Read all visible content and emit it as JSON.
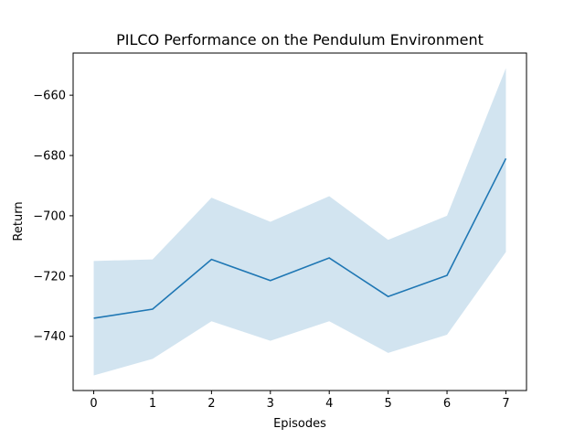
{
  "chart_data": {
    "type": "line",
    "title": "PILCO Performance on the Pendulum Environment",
    "xlabel": "Episodes",
    "ylabel": "Return",
    "x": [
      0,
      1,
      2,
      3,
      4,
      5,
      6,
      7
    ],
    "xticks": [
      "0",
      "1",
      "2",
      "3",
      "4",
      "5",
      "6",
      "7"
    ],
    "yticks": [
      -740,
      -720,
      -700,
      -680,
      -660
    ],
    "ytick_labels": [
      "−740",
      "−720",
      "−700",
      "−680",
      "−660"
    ],
    "xlim": [
      -0.35,
      7.35
    ],
    "ylim": [
      -758,
      -646
    ],
    "grid": false,
    "series": [
      {
        "values": [
          -734.0,
          -731.0,
          -714.5,
          -721.5,
          -714.0,
          -726.8,
          -719.8,
          -681.0
        ],
        "lower": [
          -753.0,
          -747.5,
          -735.0,
          -741.5,
          -735.0,
          -745.5,
          -739.5,
          -712.0
        ],
        "upper": [
          -715.0,
          -714.5,
          -694.0,
          -702.0,
          -693.5,
          -708.0,
          -700.0,
          -651.0
        ],
        "color": "#1f77b4",
        "band_color": "#1f77b4",
        "band_opacity": 0.2
      }
    ]
  }
}
